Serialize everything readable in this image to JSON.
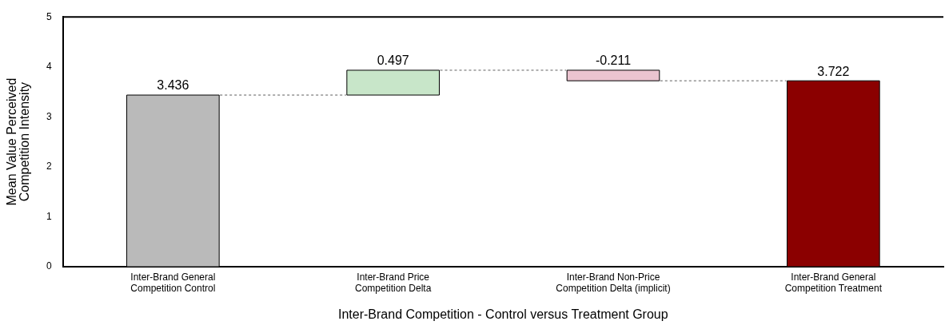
{
  "chart_data": {
    "type": "bar",
    "categories": [
      "Inter-Brand General\nCompetition Control",
      "Inter-Brand Price\nCompetition Delta",
      "Inter-Brand Non-Price\nCompetition Delta (implicit)",
      "Inter-Brand General\nCompetition Treatment"
    ],
    "values": [
      3.436,
      0.497,
      -0.211,
      3.722
    ],
    "base": [
      0,
      3.436,
      3.933,
      0
    ],
    "colors": [
      "#bababa",
      "#c8e6c9",
      "#ebc4d0",
      "#8b0000"
    ],
    "data_labels": true,
    "xlabel": "Inter-Brand Competition - Control versus Treatment Group",
    "ylabel": "Mean Value Perceived\nCompetition Intensity",
    "ylim": [
      0,
      5
    ],
    "yticks": [
      0,
      1,
      2,
      3,
      4,
      5
    ],
    "grid": false,
    "legend": false
  }
}
